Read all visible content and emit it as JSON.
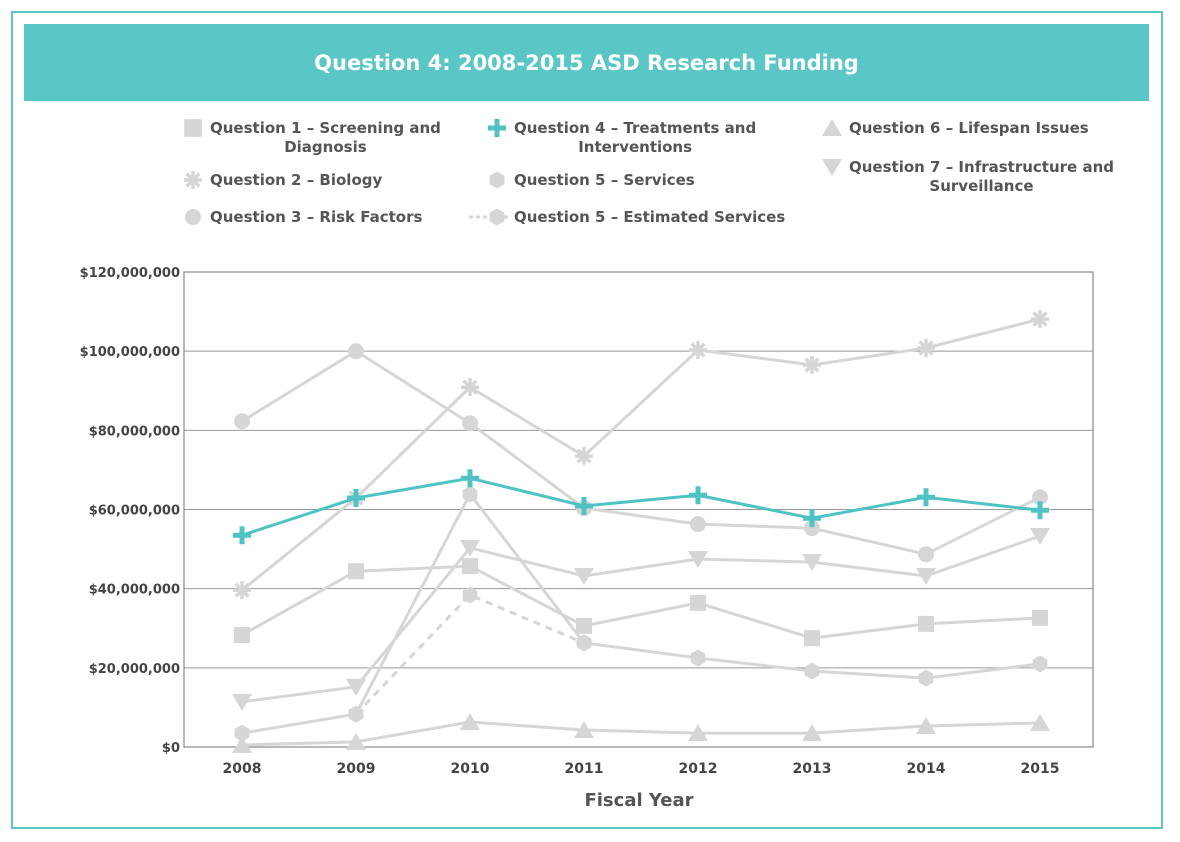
{
  "chart_data": {
    "type": "line",
    "title": "Question 4: 2008-2015 ASD Research Funding",
    "xlabel": "Fiscal Year",
    "ylabel": "",
    "x": [
      "2008",
      "2009",
      "2010",
      "2011",
      "2012",
      "2013",
      "2014",
      "2015"
    ],
    "ylim": [
      0,
      120000000
    ],
    "yticks": [
      "$0",
      "$20,000,000",
      "$40,000,000",
      "$60,000,000",
      "$80,000,000",
      "$100,000,000",
      "$120,000,000"
    ],
    "ytick_values": [
      0,
      20000000,
      40000000,
      60000000,
      80000000,
      100000000,
      120000000
    ],
    "grid": "horizontal",
    "legend_placement": "top",
    "series": [
      {
        "name": "Question 1 – Screening and Diagnosis",
        "marker": "square",
        "color": "#d6d6d6",
        "values": [
          28300000,
          44400000,
          45700000,
          30600000,
          36400000,
          27500000,
          31100000,
          32600000
        ]
      },
      {
        "name": "Question 2 – Biology",
        "marker": "asterisk",
        "color": "#d6d6d6",
        "values": [
          39600000,
          62900000,
          90900000,
          73500000,
          100300000,
          96500000,
          100800000,
          108100000
        ]
      },
      {
        "name": "Question 3 – Risk Factors",
        "marker": "circle",
        "color": "#d6d6d6",
        "values": [
          82300000,
          100000000,
          81800000,
          60400000,
          56300000,
          55300000,
          48700000,
          63100000
        ]
      },
      {
        "name": "Question 4 – Treatments and Interventions",
        "marker": "plus",
        "color": "#4fc3c3",
        "values": [
          53500000,
          62900000,
          67900000,
          60900000,
          63600000,
          57800000,
          63100000,
          59800000
        ]
      },
      {
        "name": "Question 5 – Services",
        "marker": "hexagon",
        "color": "#d6d6d6",
        "values": [
          3500000,
          8300000,
          63900000,
          26300000,
          22500000,
          19200000,
          17400000,
          21000000
        ]
      },
      {
        "name": "Question 5 – Estimated Services",
        "marker": "hexagon",
        "dashed": true,
        "color": "#d6d6d6",
        "values": [
          null,
          8300000,
          38400000,
          26300000,
          null,
          null,
          null,
          null
        ]
      },
      {
        "name": "Question 6 – Lifespan Issues",
        "marker": "triangle-up",
        "color": "#d6d6d6",
        "values": [
          500000,
          1300000,
          6300000,
          4300000,
          3500000,
          3500000,
          5300000,
          6100000
        ]
      },
      {
        "name": "Question 7 – Infrastructure and Surveillance",
        "marker": "triangle-down",
        "color": "#d6d6d6",
        "values": [
          11400000,
          15200000,
          50300000,
          43200000,
          47500000,
          46700000,
          43200000,
          53300000
        ]
      }
    ]
  },
  "legend": [
    {
      "l1": "Question 1 – Screening and",
      "l2": "Diagnosis"
    },
    {
      "l1": "Question 2 – Biology",
      "l2": ""
    },
    {
      "l1": "Question 3 – Risk Factors",
      "l2": ""
    },
    {
      "l1": "Question 4 – Treatments and",
      "l2": "Interventions"
    },
    {
      "l1": "Question 5 – Services",
      "l2": ""
    },
    {
      "l1": "Question 5 – Estimated Services",
      "l2": ""
    },
    {
      "l1": "Question 6 – Lifespan Issues",
      "l2": ""
    },
    {
      "l1": "Question 7 – Infrastructure and",
      "l2": "Surveillance"
    }
  ]
}
